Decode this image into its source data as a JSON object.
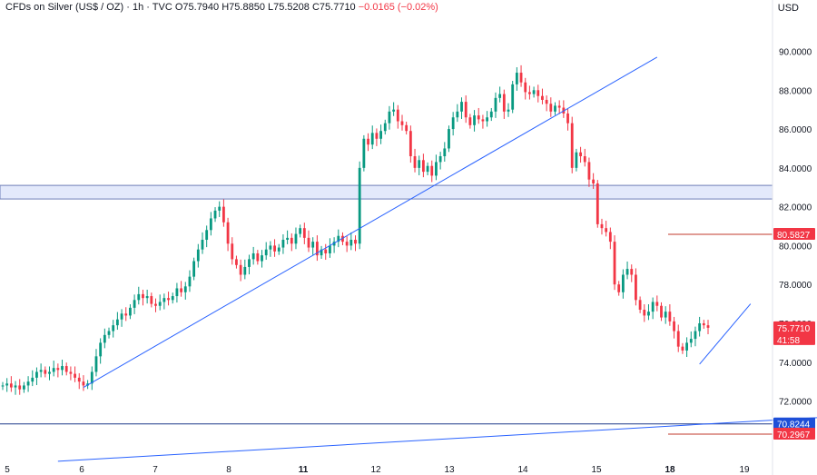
{
  "header": {
    "symbol": "CFDs on Silver (US$ / OZ) · 1h · TVC",
    "open": "O75.7940",
    "high": "H75.8850",
    "low": "L75.5208",
    "close": "C75.7710",
    "change": "−0.0165 (−0.02%)"
  },
  "currency": "USD",
  "colors": {
    "up": "#089981",
    "down": "#f23645",
    "trendline": "#2962ff",
    "zone_fill": "#e3e9fb",
    "zone_border": "#6f7fb8",
    "resistance": "#c0392b",
    "support_label": "#1e4fd8"
  },
  "chart_data": {
    "type": "candlestick",
    "x_ticks": [
      "5",
      "6",
      "7",
      "8",
      "11",
      "12",
      "13",
      "14",
      "15",
      "18",
      "19"
    ],
    "y_ticks": [
      "72.0000",
      "74.0000",
      "76.0000",
      "78.0000",
      "80.0000",
      "82.0000",
      "84.0000",
      "86.0000",
      "88.0000",
      "90.0000"
    ],
    "ylim": [
      68.8,
      91.8
    ],
    "price_labels": [
      {
        "value": 80.5827,
        "text": "80.5827",
        "color": "#f23645"
      },
      {
        "value": 75.771,
        "text": "75.7710",
        "sub": "41:58",
        "color": "#f23645"
      },
      {
        "value": 70.8244,
        "text": "70.8244",
        "color": "#1e4fd8"
      },
      {
        "value": 70.2967,
        "text": "70.2967",
        "color": "#f23645"
      }
    ],
    "zone": {
      "from": 82.4,
      "to": 83.1
    },
    "horizontal_lines": [
      {
        "value": 80.5827,
        "color": "#c0392b"
      },
      {
        "value": 70.8244,
        "color": "#1e3a8a"
      },
      {
        "value": 70.2967,
        "color": "#c0392b"
      }
    ],
    "closes": [
      72.8,
      72.9,
      72.7,
      72.8,
      72.6,
      72.8,
      73.0,
      73.2,
      73.5,
      73.6,
      73.4,
      73.5,
      73.7,
      73.6,
      73.8,
      73.5,
      73.4,
      73.2,
      73.0,
      72.8,
      72.9,
      73.5,
      74.3,
      75.0,
      75.4,
      75.6,
      75.9,
      76.2,
      76.5,
      76.4,
      76.8,
      77.2,
      77.5,
      77.3,
      77.4,
      77.0,
      76.9,
      77.1,
      77.3,
      77.2,
      77.4,
      77.8,
      77.6,
      77.9,
      78.4,
      79.2,
      79.8,
      80.3,
      80.8,
      81.4,
      81.8,
      82.0,
      81.2,
      80.1,
      79.3,
      79.0,
      78.5,
      78.9,
      79.3,
      79.6,
      79.2,
      79.5,
      79.8,
      80.0,
      79.7,
      79.9,
      80.3,
      80.4,
      80.1,
      80.6,
      80.9,
      80.4,
      79.9,
      80.2,
      79.5,
      79.8,
      79.6,
      80.0,
      80.2,
      80.5,
      80.2,
      80.0,
      80.3,
      80.1,
      84.0,
      85.5,
      85.2,
      85.8,
      85.5,
      85.9,
      86.3,
      86.9,
      87.0,
      86.4,
      86.2,
      85.9,
      84.6,
      84.0,
      84.4,
      83.8,
      84.1,
      83.6,
      84.3,
      84.6,
      85.0,
      86.0,
      86.6,
      86.9,
      87.4,
      86.6,
      86.2,
      86.7,
      86.5,
      86.4,
      86.6,
      86.9,
      87.6,
      87.8,
      86.9,
      87.0,
      88.3,
      88.9,
      88.4,
      87.9,
      87.8,
      88.0,
      87.7,
      87.5,
      87.3,
      86.9,
      87.2,
      87.1,
      86.8,
      86.3,
      84.0,
      84.8,
      84.6,
      84.3,
      83.4,
      83.2,
      81.1,
      80.9,
      80.7,
      80.2,
      78.0,
      77.6,
      78.5,
      78.8,
      78.5,
      77.2,
      76.7,
      76.4,
      76.6,
      77.1,
      76.9,
      76.3,
      76.6,
      76.1,
      75.6,
      74.8,
      74.6,
      75.0,
      75.2,
      75.6,
      76.0,
      75.9,
      75.77
    ],
    "trendlines": [
      {
        "from": [
          19,
          72.7
        ],
        "to": [
          154,
          89.7
        ]
      },
      {
        "from": [
          13,
          68.9
        ],
        "to": [
          212,
          71.4
        ]
      },
      {
        "from": [
          164,
          73.9
        ],
        "to": [
          176,
          77.0
        ]
      }
    ]
  }
}
